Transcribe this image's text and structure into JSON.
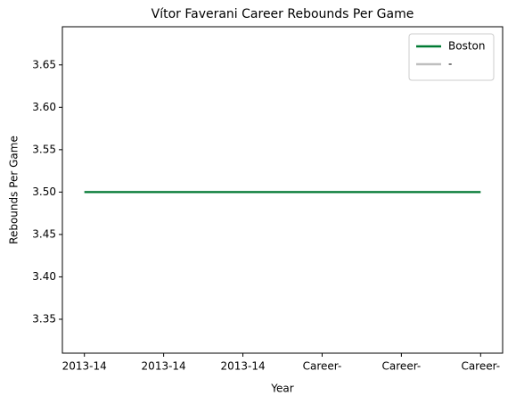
{
  "chart_data": {
    "type": "line",
    "title": "Vítor Faverani Career Rebounds Per Game",
    "x_label": "Year",
    "y_label": "Rebounds Per Game",
    "categories": [
      "2013-14",
      "2013-14",
      "2013-14",
      "Career-",
      "Career-",
      "Career-"
    ],
    "series": [
      {
        "name": "Boston",
        "color": "#007a33",
        "values": [
          3.5,
          3.5,
          3.5,
          3.5,
          3.5,
          3.5
        ]
      },
      {
        "name": "-",
        "color": "#bfbfbf",
        "values": [
          3.5,
          3.5,
          3.5,
          3.5,
          3.5,
          3.5
        ]
      }
    ],
    "ylim": [
      3.31,
      3.695
    ],
    "yticks": [
      3.35,
      {
        "value": 3.4,
        "label": "3.40"
      },
      3.45,
      {
        "value": 3.5,
        "label": "3.50"
      },
      3.55,
      {
        "value": 3.6,
        "label": "3.60"
      },
      3.65
    ],
    "legend": "upper right",
    "grid": false
  }
}
